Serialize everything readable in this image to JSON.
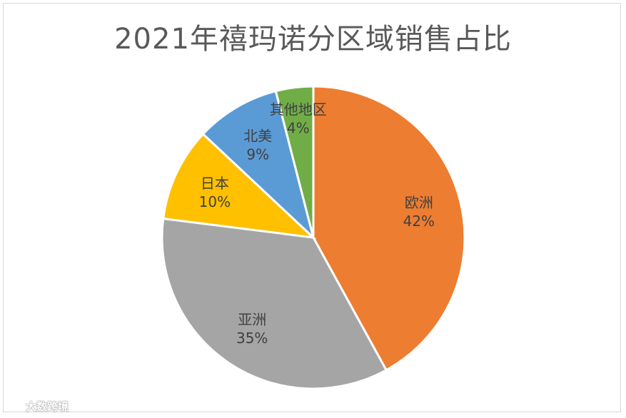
{
  "chart_data": {
    "type": "pie",
    "title": "2021年禧玛诺分区域销售占比",
    "slices": [
      {
        "label": "欧洲",
        "value": 42,
        "display": "42%",
        "color": "#ED7D31"
      },
      {
        "label": "亚洲",
        "value": 35,
        "display": "35%",
        "color": "#A5A5A5"
      },
      {
        "label": "日本",
        "value": 10,
        "display": "10%",
        "color": "#FFC000"
      },
      {
        "label": "北美",
        "value": 9,
        "display": "9%",
        "color": "#5B9BD5"
      },
      {
        "label": "其他地区",
        "value": 4,
        "display": "4%",
        "color": "#70AD47"
      }
    ],
    "start": "12 o'clock",
    "direction": "clockwise",
    "legend": "none"
  },
  "watermark": {
    "text": "大数跨境"
  }
}
